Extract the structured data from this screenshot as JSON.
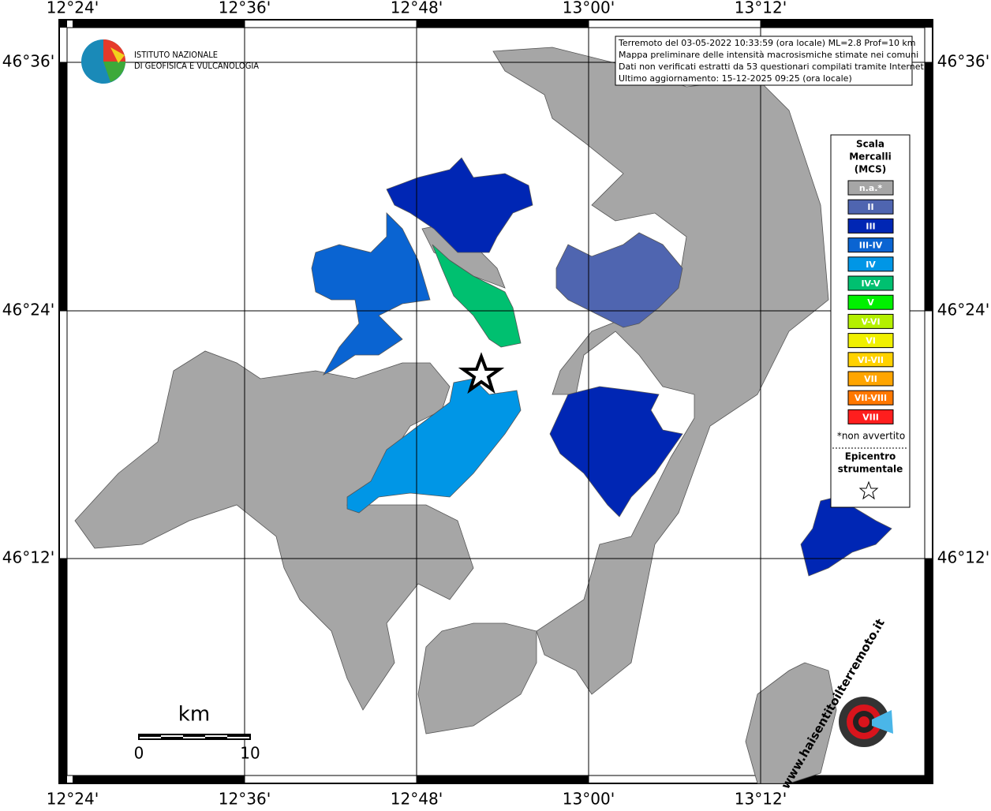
{
  "map": {
    "top_labels": [
      "12°24'",
      "12°36'",
      "12°48'",
      "13°00'",
      "13°12'"
    ],
    "bottom_labels": [
      "12°24'",
      "12°36'",
      "12°48'",
      "13°00'",
      "13°12'"
    ],
    "left_labels": [
      "46°36'",
      "46°24'",
      "46°12'"
    ],
    "right_labels": [
      "46°36'",
      "46°24'",
      "46°12'"
    ],
    "logo": {
      "line1": "ISTITUTO NAZIONALE",
      "line2": "DI GEOFISICA E VULCANOLOGIA"
    },
    "info": [
      "Terremoto del 03-05-2022 10:33:59 (ora locale) ML=2.8 Prof=10 km",
      "Mappa preliminare delle intensità macrosismiche stimate nei comuni",
      "Dati non verificati estratti da 53 questionari compilati tramite Internet.",
      "Ultimo aggiornamento: 15-12-2025 09:25 (ora locale)"
    ],
    "legend": {
      "title": [
        "Scala",
        "Mercalli",
        "(MCS)"
      ],
      "items": [
        {
          "label": "n.a.*",
          "color": "#a6a6a6"
        },
        {
          "label": "II",
          "color": "#4f65b0"
        },
        {
          "label": "III",
          "color": "#0026b4"
        },
        {
          "label": "III-IV",
          "color": "#0a64d2"
        },
        {
          "label": "IV",
          "color": "#0096e6"
        },
        {
          "label": "IV-V",
          "color": "#00c070"
        },
        {
          "label": "V",
          "color": "#00f000"
        },
        {
          "label": "V-VI",
          "color": "#b4f000"
        },
        {
          "label": "VI",
          "color": "#f0f000"
        },
        {
          "label": "VI-VII",
          "color": "#ffd200"
        },
        {
          "label": "VII",
          "color": "#ffa500"
        },
        {
          "label": "VII-VIII",
          "color": "#ff7800"
        },
        {
          "label": "VIII",
          "color": "#ff1e1e"
        }
      ],
      "note": "*non avvertito",
      "epicenter": [
        "Epicentro",
        "strumentale"
      ]
    },
    "scale_bar": {
      "unit": "km",
      "start": "0",
      "end": "10"
    },
    "site": "www.haisentitoilterremoto.it"
  }
}
